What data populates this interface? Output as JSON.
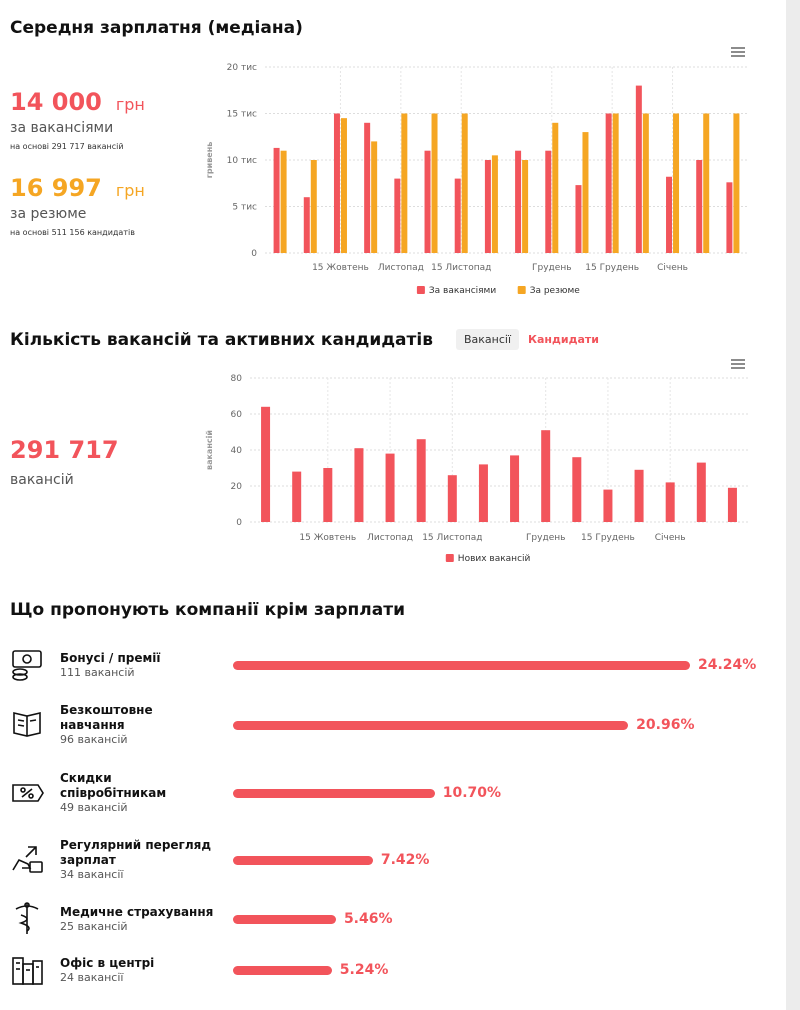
{
  "salary_section": {
    "title": "Середня зарплатня (медіана)",
    "stats": [
      {
        "value": "14 000",
        "unit": "грн",
        "label": "за вакансіями",
        "note": "на основі 291 717 вакансій",
        "color": "#f2545b"
      },
      {
        "value": "16 997",
        "unit": "грн",
        "label": "за резюме",
        "note": "на основі 511 156 кандидатів",
        "color": "#f5a623"
      }
    ]
  },
  "vacancy_section": {
    "title": "Кількість вакансій та активних кандидатів",
    "tabs": [
      "Вакансії",
      "Кандидати"
    ],
    "stat": {
      "value": "291 717",
      "label": "вакансій"
    }
  },
  "chart_data": [
    {
      "type": "bar",
      "y_label": "гривень",
      "categories": [
        null,
        null,
        "15 Жовтень",
        null,
        "Листопад",
        null,
        "15 Листопад",
        null,
        null,
        "Грудень",
        null,
        "15 Грудень",
        null,
        "Січень",
        null,
        null
      ],
      "series": [
        {
          "name": "За вакансіями",
          "color": "#f2545b",
          "values": [
            11300,
            6000,
            15000,
            14000,
            8000,
            11000,
            8000,
            10000,
            11000,
            11000,
            7300,
            15000,
            18000,
            8200,
            10000,
            7600
          ]
        },
        {
          "name": "За резюме",
          "color": "#f5a623",
          "values": [
            11000,
            10000,
            14500,
            12000,
            15000,
            15000,
            15000,
            10500,
            10000,
            14000,
            13000,
            15000,
            15000,
            15000,
            15000,
            15000
          ]
        }
      ],
      "ylim": [
        0,
        20000
      ],
      "yticks": [
        0,
        {
          "value": 5000,
          "label": "5 тис"
        },
        {
          "value": 10000,
          "label": "10 тис"
        },
        {
          "value": 15000,
          "label": "15 тис"
        },
        {
          "value": 20000,
          "label": "20 тис"
        }
      ],
      "grid": true
    },
    {
      "type": "bar",
      "y_label": "вакансій",
      "categories": [
        null,
        null,
        "15 Жовтень",
        null,
        "Листопад",
        null,
        "15 Листопад",
        null,
        null,
        "Грудень",
        null,
        "15 Грудень",
        null,
        "Січень",
        null,
        null
      ],
      "series": [
        {
          "name": "Нових вакансій",
          "color": "#f2545b",
          "values": [
            64,
            28,
            30,
            41,
            38,
            46,
            26,
            32,
            37,
            51,
            36,
            18,
            29,
            22,
            33,
            19
          ]
        }
      ],
      "ylim": [
        0,
        80
      ],
      "yticks": [
        0,
        20,
        40,
        60,
        80
      ],
      "grid": true
    }
  ],
  "benefits": {
    "title": "Що пропонують компанії крім зарплати",
    "color": "#f2545b",
    "items": [
      {
        "name": "Бонусі / премії",
        "count": "111 вакансій",
        "value": 24.24,
        "value_label": "24.24%"
      },
      {
        "name": "Безкоштовне навчання",
        "count": "96 вакансій",
        "value": 20.96,
        "value_label": "20.96%"
      },
      {
        "name": "Скидки співробітникам",
        "count": "49 вакансій",
        "value": 10.7,
        "value_label": "10.70%"
      },
      {
        "name": "Регулярний перегляд зарплат",
        "count": "34 вакансії",
        "value": 7.42,
        "value_label": "7.42%"
      },
      {
        "name": "Медичне страхування",
        "count": "25 вакансій",
        "value": 5.46,
        "value_label": "5.46%"
      },
      {
        "name": "Офіс в центрі",
        "count": "24 вакансії",
        "value": 5.24,
        "value_label": "5.24%"
      }
    ]
  }
}
